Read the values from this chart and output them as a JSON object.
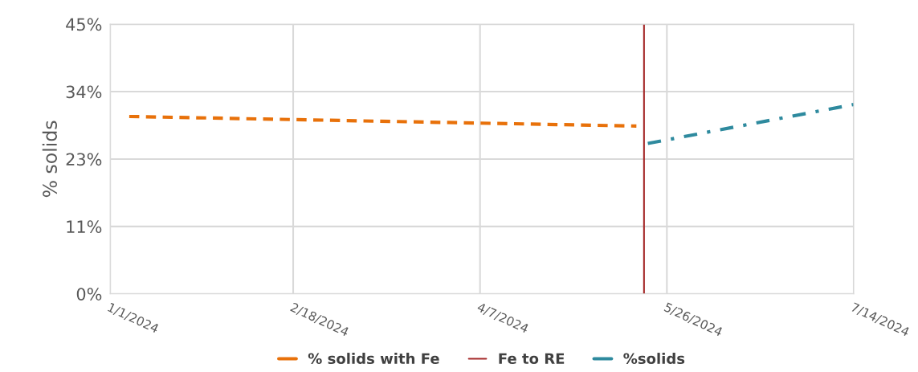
{
  "chart_data": {
    "type": "line",
    "ylabel": "% solids",
    "xlim": [
      "2024-01-01",
      "2024-07-14"
    ],
    "xticks": [
      {
        "value": "2024-01-01",
        "label": "1/1/2024"
      },
      {
        "value": "2024-02-18",
        "label": "2/18/2024"
      },
      {
        "value": "2024-04-07",
        "label": "4/7/2024"
      },
      {
        "value": "2024-05-26",
        "label": "5/26/2024"
      },
      {
        "value": "2024-07-14",
        "label": "7/14/2024"
      }
    ],
    "ylim": [
      0,
      45
    ],
    "yticks": [
      {
        "value": 0,
        "label": "0%"
      },
      {
        "value": 11.25,
        "label": "11%"
      },
      {
        "value": 22.5,
        "label": "23%"
      },
      {
        "value": 33.75,
        "label": "34%"
      },
      {
        "value": 45,
        "label": "45%"
      }
    ],
    "series": [
      {
        "name": "% solids with Fe",
        "color": "#e8710a",
        "line_style": "dashed",
        "x": [
          "2024-01-06",
          "2024-05-18"
        ],
        "values": [
          29.6,
          28.0
        ]
      },
      {
        "name": "%solids",
        "color": "#2e8a9e",
        "line_style": "dashdot",
        "x": [
          "2024-05-21",
          "2024-07-14"
        ],
        "values": [
          25.1,
          31.6
        ]
      }
    ],
    "ref_lines": [
      {
        "axis": "x",
        "value": "2024-05-20",
        "label": "Fe to RE",
        "color": "#a52a2a"
      }
    ],
    "grid": true,
    "legend": "bottom"
  }
}
